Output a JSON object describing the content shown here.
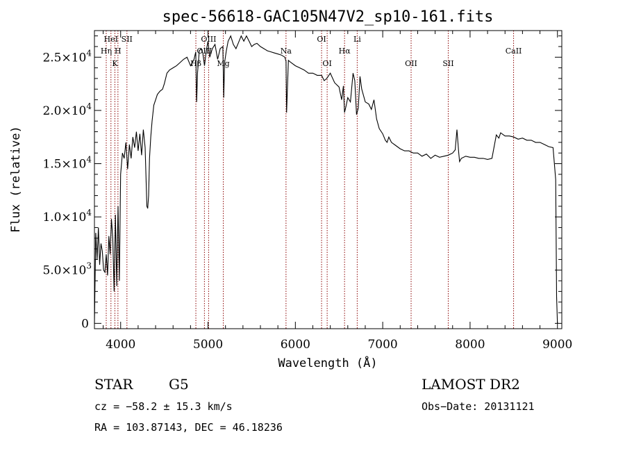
{
  "chart_data": {
    "type": "line",
    "title": "spec-56618-GAC105N47V2_sp10-161.fits",
    "xlabel": "Wavelength (Å)",
    "ylabel": "Flux (relative)",
    "xlim": [
      3700,
      9050
    ],
    "ylim": [
      -500,
      27500
    ],
    "x_ticks": [
      4000,
      5000,
      6000,
      7000,
      8000,
      9000
    ],
    "y_ticks": [
      {
        "value": 0,
        "mant": "0",
        "exp": ""
      },
      {
        "value": 5000,
        "mant": "5.0×10",
        "exp": "3"
      },
      {
        "value": 10000,
        "mant": "1.0×10",
        "exp": "4"
      },
      {
        "value": 15000,
        "mant": "1.5×10",
        "exp": "4"
      },
      {
        "value": 20000,
        "mant": "2.0×10",
        "exp": "4"
      },
      {
        "value": 25000,
        "mant": "2.5×10",
        "exp": "4"
      }
    ],
    "series": [
      {
        "x": [
          3700,
          3715,
          3730,
          3745,
          3760,
          3775,
          3790,
          3805,
          3820,
          3835,
          3850,
          3865,
          3880,
          3895,
          3910,
          3925,
          3940,
          3955,
          3970,
          3985,
          4000,
          4020,
          4040,
          4060,
          4080,
          4100,
          4120,
          4140,
          4160,
          4180,
          4200,
          4220,
          4240,
          4260,
          4280,
          4300,
          4310,
          4320,
          4330,
          4345,
          4360,
          4380,
          4400,
          4420,
          4450,
          4480,
          4500,
          4530,
          4560,
          4600,
          4640,
          4680,
          4720,
          4760,
          4800,
          4840,
          4860,
          4870,
          4880,
          4900,
          4920,
          4940,
          4960,
          4980,
          5000,
          5020,
          5050,
          5080,
          5110,
          5140,
          5170,
          5180,
          5190,
          5210,
          5230,
          5260,
          5290,
          5320,
          5350,
          5380,
          5410,
          5440,
          5470,
          5500,
          5530,
          5560,
          5600,
          5640,
          5680,
          5720,
          5760,
          5800,
          5840,
          5880,
          5893,
          5900,
          5920,
          5950,
          6000,
          6050,
          6100,
          6150,
          6200,
          6250,
          6300,
          6330,
          6360,
          6400,
          6450,
          6500,
          6530,
          6550,
          6563,
          6580,
          6600,
          6630,
          6660,
          6680,
          6700,
          6720,
          6740,
          6760,
          6800,
          6840,
          6870,
          6900,
          6930,
          6960,
          7000,
          7030,
          7050,
          7070,
          7100,
          7150,
          7200,
          7250,
          7300,
          7350,
          7400,
          7450,
          7500,
          7550,
          7600,
          7650,
          7700,
          7750,
          7800,
          7830,
          7850,
          7870,
          7880,
          7900,
          7950,
          8000,
          8050,
          8100,
          8150,
          8200,
          8250,
          8300,
          8330,
          8350,
          8400,
          8450,
          8500,
          8550,
          8600,
          8650,
          8700,
          8750,
          8800,
          8850,
          8900,
          8950,
          8980,
          8990,
          9000
        ],
        "y": [
          0,
          8500,
          6000,
          9000,
          5500,
          7500,
          6800,
          5000,
          4800,
          6500,
          4500,
          8200,
          6500,
          9800,
          8000,
          3000,
          10200,
          3500,
          11000,
          4000,
          14000,
          16000,
          15500,
          17000,
          14500,
          16800,
          15500,
          17500,
          16500,
          18000,
          16200,
          17800,
          15800,
          18200,
          16500,
          11000,
          10800,
          12000,
          15500,
          17500,
          19000,
          20500,
          21000,
          21500,
          21800,
          22000,
          22500,
          23500,
          23800,
          24000,
          24200,
          24500,
          24800,
          25000,
          24200,
          24800,
          25500,
          20800,
          23500,
          25600,
          25800,
          25400,
          24200,
          25600,
          26500,
          25000,
          25800,
          26200,
          24800,
          25800,
          26000,
          21200,
          24500,
          25600,
          26500,
          27000,
          26200,
          25800,
          26400,
          27000,
          26500,
          27000,
          26500,
          26000,
          26200,
          26300,
          26000,
          25800,
          25600,
          25500,
          25400,
          25300,
          25200,
          25000,
          24600,
          19800,
          24700,
          24500,
          24200,
          24000,
          23800,
          23500,
          23500,
          23300,
          23300,
          22800,
          23000,
          23500,
          22600,
          22200,
          21000,
          22300,
          19800,
          20400,
          21200,
          20800,
          23500,
          22800,
          19600,
          20200,
          23200,
          22000,
          20800,
          20600,
          20100,
          21000,
          19200,
          18300,
          17800,
          17200,
          17000,
          17500,
          17000,
          16700,
          16400,
          16200,
          16200,
          16000,
          16000,
          15700,
          15900,
          15500,
          15800,
          15600,
          15700,
          15800,
          16000,
          16300,
          18200,
          16000,
          15200,
          15500,
          15700,
          15600,
          15600,
          15500,
          15500,
          15400,
          15500,
          17700,
          17400,
          17900,
          17600,
          17600,
          17500,
          17300,
          17400,
          17200,
          17200,
          17000,
          17000,
          16800,
          16600,
          16500,
          13500,
          2500,
          0
        ]
      }
    ],
    "lines": [
      {
        "x": 3835,
        "label": "Hη",
        "row": 2
      },
      {
        "x": 3889,
        "label": "HeI",
        "row": 1
      },
      {
        "x": 3934,
        "label": "K",
        "row": 3
      },
      {
        "x": 3969,
        "label": "H",
        "row": 2
      },
      {
        "x": 4072,
        "label": "SII",
        "row": 1
      },
      {
        "x": 4861,
        "label": "Hβ",
        "row": 3
      },
      {
        "x": 4959,
        "label": "OIII",
        "row": 2
      },
      {
        "x": 5007,
        "label": "OIII",
        "row": 1
      },
      {
        "x": 5175,
        "label": "Mg",
        "row": 3
      },
      {
        "x": 5893,
        "label": "Na",
        "row": 2
      },
      {
        "x": 6300,
        "label": "OI",
        "row": 1
      },
      {
        "x": 6364,
        "label": "OI",
        "row": 3
      },
      {
        "x": 6563,
        "label": "Hα",
        "row": 2
      },
      {
        "x": 6708,
        "label": "Li",
        "row": 1
      },
      {
        "x": 7325,
        "label": "OII",
        "row": 3
      },
      {
        "x": 7750,
        "label": "SII",
        "row": 3
      },
      {
        "x": 8498,
        "label": "CaII",
        "row": 2
      }
    ]
  },
  "info": {
    "object_class": "STAR",
    "subclass": "G5",
    "survey": "LAMOST DR2",
    "cz": "cz = −58.2 ± 15.3 km/s",
    "obs_date": "Obs−Date: 20131121",
    "coords": "RA = 103.87143, DEC =  46.18236"
  },
  "colors": {
    "spectrum": "#000000",
    "line_markers": "#8b0000",
    "axes": "#000000"
  }
}
